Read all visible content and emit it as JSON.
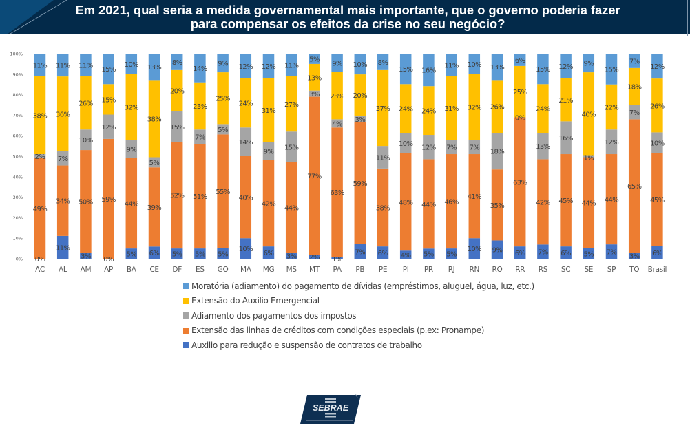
{
  "header": {
    "title_line1": "Em 2021, qual seria a medida governamental mais importante, que o governo poderia fazer",
    "title_line2": "para compensar os efeitos da crise no seu negócio?"
  },
  "logo": {
    "text": "SEBRAE"
  },
  "colors": {
    "header_bg": "#032a4a",
    "header_accent": "#0b4a78",
    "moratoria": "#5b9bd5",
    "auxilio_emergencial": "#ffc000",
    "adiamento_impostos": "#a5a5a5",
    "linhas_credito": "#ed7d31",
    "auxilio_contratos": "#4472c4"
  },
  "chart_data": {
    "type": "bar",
    "stacked": true,
    "title": "Em 2021, qual seria a medida governamental mais importante, que o governo poderia fazer para compensar os efeitos da crise no seu negócio?",
    "xlabel": "",
    "ylabel": "",
    "ylim": [
      0,
      100
    ],
    "yticks": [
      "0%",
      "10%",
      "20%",
      "30%",
      "40%",
      "50%",
      "60%",
      "70%",
      "80%",
      "90%",
      "100%"
    ],
    "grid": false,
    "legend_position": "bottom",
    "categories": [
      "AC",
      "AL",
      "AM",
      "AP",
      "BA",
      "CE",
      "DF",
      "ES",
      "GO",
      "MA",
      "MG",
      "MS",
      "MT",
      "PA",
      "PB",
      "PE",
      "PI",
      "PR",
      "RJ",
      "RN",
      "RO",
      "RR",
      "RS",
      "SC",
      "SE",
      "SP",
      "TO",
      "Brasil"
    ],
    "series": [
      {
        "name": "Auxilio para redução e suspensão de contratos de trabalho",
        "color": "#4472c4",
        "values": [
          0,
          11,
          3,
          0,
          5,
          6,
          5,
          5,
          5,
          10,
          6,
          3,
          2,
          1,
          7,
          6,
          4,
          5,
          5,
          10,
          9,
          6,
          7,
          6,
          5,
          7,
          3,
          6
        ]
      },
      {
        "name": "Extensão das linhas de créditos com condições especiais (p.ex: Pronampe)",
        "color": "#ed7d31",
        "values": [
          49,
          34,
          50,
          59,
          44,
          39,
          52,
          51,
          55,
          40,
          42,
          44,
          77,
          63,
          59,
          38,
          48,
          44,
          46,
          41,
          35,
          63,
          42,
          45,
          44,
          44,
          65,
          45
        ]
      },
      {
        "name": "Adiamento dos pagamentos dos impostos",
        "color": "#a5a5a5",
        "values": [
          2,
          7,
          10,
          12,
          9,
          5,
          15,
          7,
          5,
          14,
          9,
          15,
          3,
          4,
          3,
          11,
          10,
          12,
          7,
          7,
          18,
          0,
          13,
          16,
          1,
          12,
          7,
          10
        ]
      },
      {
        "name": "Extensão do Auxilio Emergencial",
        "color": "#ffc000",
        "values": [
          38,
          36,
          26,
          15,
          32,
          38,
          20,
          23,
          25,
          24,
          31,
          27,
          13,
          23,
          20,
          37,
          24,
          24,
          31,
          32,
          26,
          25,
          24,
          21,
          40,
          22,
          18,
          26
        ]
      },
      {
        "name": "Moratória (adiamento) do pagamento de dívidas (empréstimos, aluguel, água, luz, etc.)",
        "color": "#5b9bd5",
        "values": [
          11,
          11,
          11,
          15,
          10,
          13,
          8,
          14,
          9,
          12,
          12,
          11,
          5,
          9,
          10,
          8,
          15,
          16,
          11,
          10,
          13,
          6,
          15,
          12,
          9,
          15,
          7,
          12
        ]
      }
    ],
    "legend_order": [
      "Moratória (adiamento) do pagamento de dívidas (empréstimos, aluguel, água, luz, etc.)",
      "Extensão do Auxilio Emergencial",
      "Adiamento dos pagamentos dos impostos",
      "Extensão das linhas de créditos com condições especiais (p.ex: Pronampe)",
      "Auxilio para redução e suspensão de contratos de trabalho"
    ]
  }
}
